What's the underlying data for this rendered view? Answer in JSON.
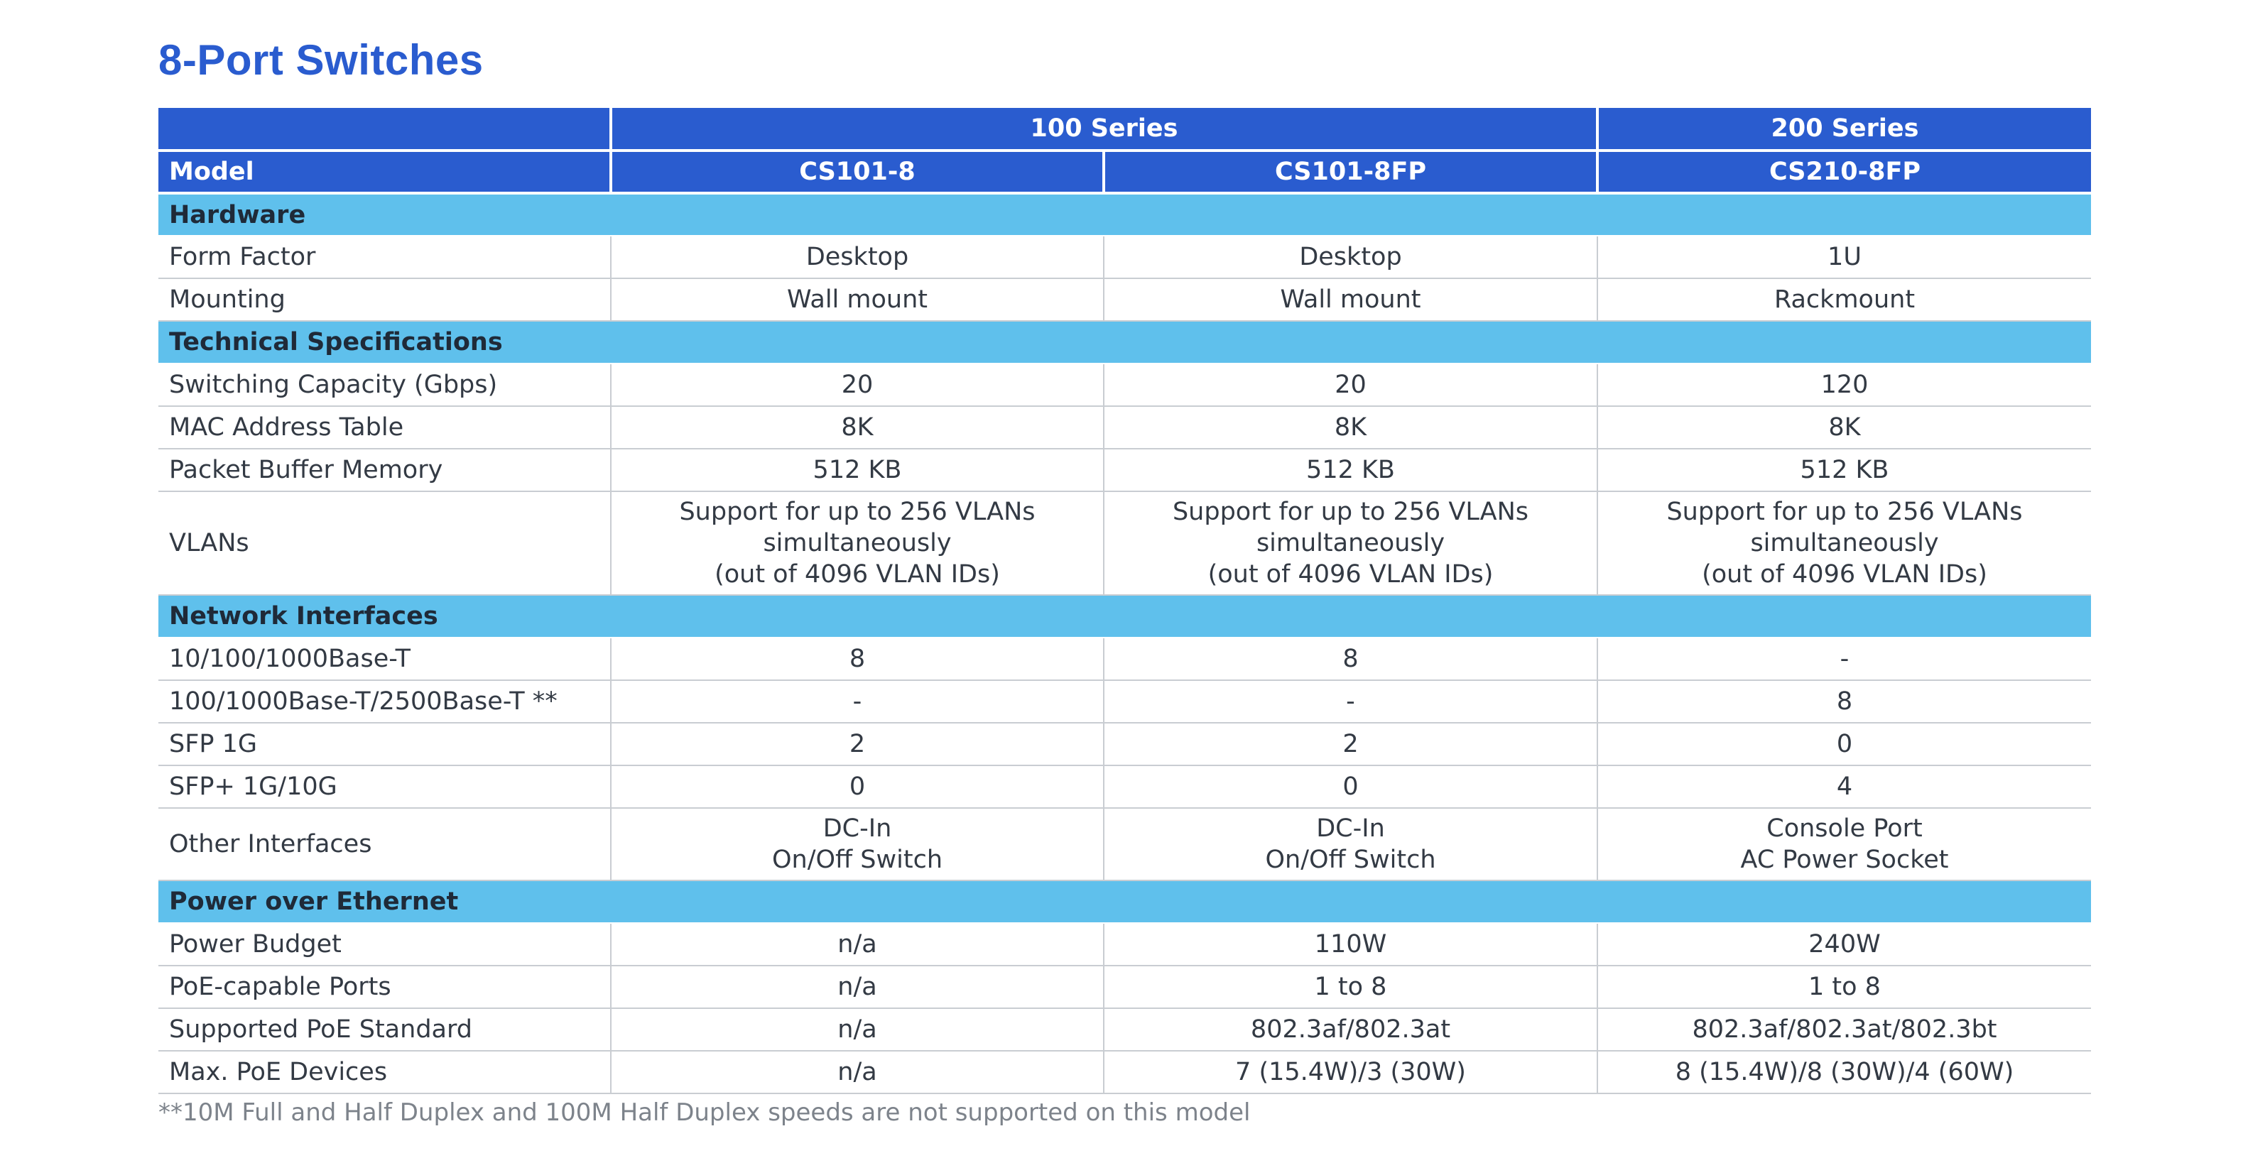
{
  "title": "8-Port Switches",
  "colors": {
    "header_blue": "#2a5ccf",
    "section_cyan": "#5fc0ec",
    "title_blue": "#2a5ccf"
  },
  "header": {
    "series_100": "100 Series",
    "series_200": "200 Series",
    "model_label": "Model",
    "models": [
      "CS101-8",
      "CS101-8FP",
      "CS210-8FP"
    ]
  },
  "sections": [
    {
      "name": "Hardware",
      "rows": [
        {
          "label": "Form Factor",
          "values": [
            "Desktop",
            "Desktop",
            "1U"
          ]
        },
        {
          "label": "Mounting",
          "values": [
            "Wall mount",
            "Wall mount",
            "Rackmount"
          ]
        }
      ]
    },
    {
      "name": "Technical Specifications",
      "rows": [
        {
          "label": "Switching Capacity (Gbps)",
          "values": [
            "20",
            "20",
            "120"
          ]
        },
        {
          "label": "MAC Address Table",
          "values": [
            "8K",
            "8K",
            "8K"
          ]
        },
        {
          "label": "Packet Buffer Memory",
          "values": [
            "512 KB",
            "512 KB",
            "512 KB"
          ]
        },
        {
          "label": "VLANs",
          "values": [
            "Support for up to 256 VLANs\nsimultaneously\n(out of 4096 VLAN IDs)",
            "Support for up to 256 VLANs\nsimultaneously\n(out of 4096 VLAN IDs)",
            "Support for up to 256 VLANs\nsimultaneously\n(out of 4096 VLAN IDs)"
          ]
        }
      ]
    },
    {
      "name": "Network Interfaces",
      "rows": [
        {
          "label": "10/100/1000Base-T",
          "values": [
            "8",
            "8",
            "-"
          ]
        },
        {
          "label": "100/1000Base-T/2500Base-T **",
          "values": [
            "-",
            "-",
            "8"
          ]
        },
        {
          "label": "SFP 1G",
          "values": [
            "2",
            "2",
            "0"
          ]
        },
        {
          "label": "SFP+ 1G/10G",
          "values": [
            "0",
            "0",
            "4"
          ]
        },
        {
          "label": "Other Interfaces",
          "values": [
            "DC-In\nOn/Off Switch",
            "DC-In\nOn/Off Switch",
            "Console Port\nAC Power Socket"
          ]
        }
      ]
    },
    {
      "name": "Power over Ethernet",
      "rows": [
        {
          "label": "Power Budget",
          "values": [
            "n/a",
            "110W",
            "240W"
          ]
        },
        {
          "label": "PoE-capable Ports",
          "values": [
            "n/a",
            "1 to 8",
            "1 to 8"
          ]
        },
        {
          "label": "Supported PoE Standard",
          "values": [
            "n/a",
            "802.3af/802.3at",
            "802.3af/802.3at/802.3bt"
          ]
        },
        {
          "label": "Max. PoE Devices",
          "values": [
            "n/a",
            "7 (15.4W)/3 (30W)",
            "8 (15.4W)/8 (30W)/4 (60W)"
          ]
        }
      ]
    }
  ],
  "footnote": "**10M Full and Half Duplex and 100M Half Duplex speeds are not supported on this model"
}
